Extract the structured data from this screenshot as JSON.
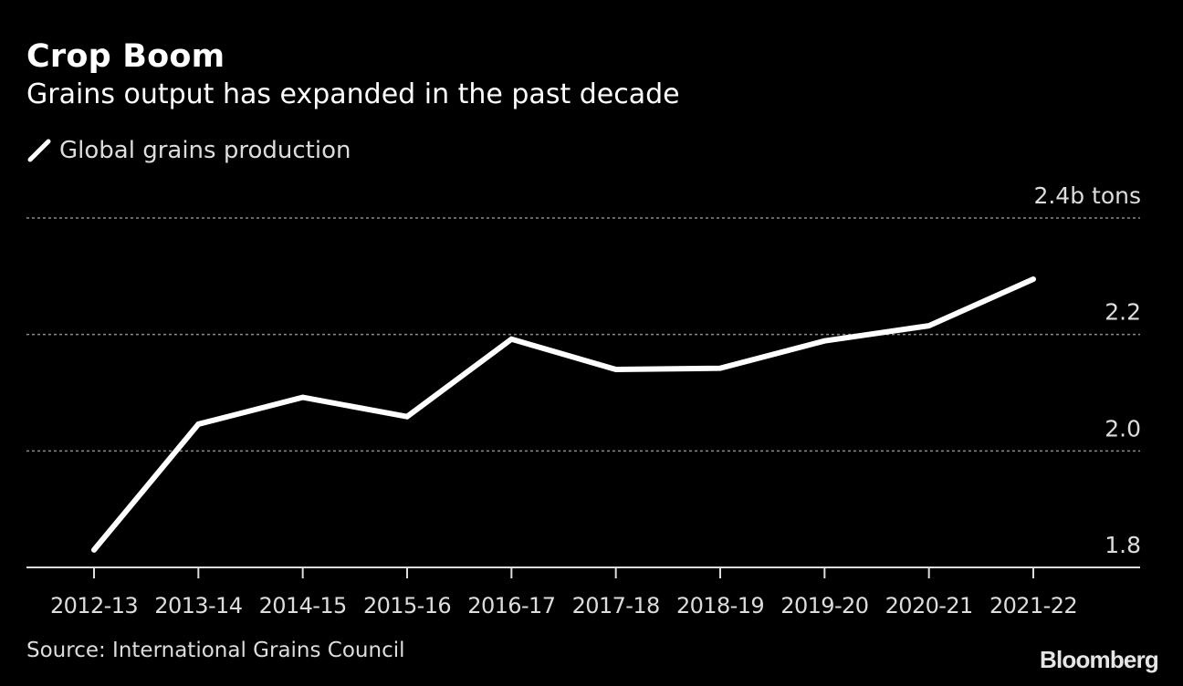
{
  "header": {
    "title": "Crop Boom",
    "subtitle": "Grains output has expanded in the past decade"
  },
  "legend": {
    "items": [
      {
        "label": "Global grains production",
        "icon": "line-swatch-icon",
        "color": "#ffffff"
      }
    ]
  },
  "footer": {
    "source": "Source: International Grains Council",
    "brand": "Bloomberg"
  },
  "chart_data": {
    "type": "line",
    "title": "Crop Boom",
    "subtitle": "Grains output has expanded in the past decade",
    "xlabel": "",
    "ylabel": "",
    "categories": [
      "2012-13",
      "2013-14",
      "2014-15",
      "2015-16",
      "2016-17",
      "2017-18",
      "2018-19",
      "2019-20",
      "2020-21",
      "2021-22"
    ],
    "series": [
      {
        "name": "Global grains production",
        "color": "#ffffff",
        "values": [
          1.83,
          2.046,
          2.092,
          2.059,
          2.192,
          2.14,
          2.142,
          2.189,
          2.215,
          2.295
        ]
      }
    ],
    "ylim": [
      1.8,
      2.4
    ],
    "yticks": [
      1.8,
      2.0,
      2.2,
      2.4
    ],
    "ytick_labels": [
      "1.8",
      "2.0",
      "2.2",
      "2.4b tons"
    ],
    "y_axis_side": "right",
    "grid": true,
    "grid_style": "dotted",
    "legend_position": "top-left",
    "units": "billion tons"
  }
}
